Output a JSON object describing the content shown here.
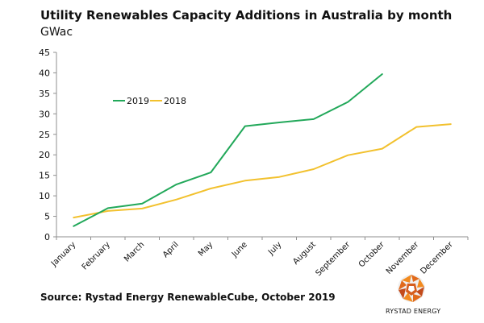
{
  "title": "Utility Renewables Capacity Additions in Australia by month",
  "subtitle": "GWac",
  "source": "Source: Rystad Energy RenewableCube, October 2019",
  "logo_text": "RYSTAD ENERGY",
  "colors": {
    "series_2019": "#22a85a",
    "series_2018": "#f2c12e",
    "axis": "#8f8f8f"
  },
  "chart_data": {
    "type": "line",
    "categories": [
      "January",
      "February",
      "March",
      "April",
      "May",
      "June",
      "July",
      "August",
      "September",
      "October",
      "November",
      "December"
    ],
    "series": [
      {
        "name": "2019",
        "values": [
          2.6,
          7.0,
          8.1,
          12.8,
          15.7,
          27.0,
          27.9,
          28.7,
          32.9,
          39.7,
          null,
          null
        ]
      },
      {
        "name": "2018",
        "values": [
          4.7,
          6.3,
          6.9,
          9.1,
          11.8,
          13.7,
          14.6,
          16.5,
          19.9,
          21.5,
          26.8,
          27.5
        ]
      }
    ],
    "yticks": [
      0,
      5,
      10,
      15,
      20,
      25,
      30,
      35,
      40,
      45
    ],
    "ylim": [
      0,
      45
    ],
    "grid": false,
    "legend_placement": "top-left"
  }
}
